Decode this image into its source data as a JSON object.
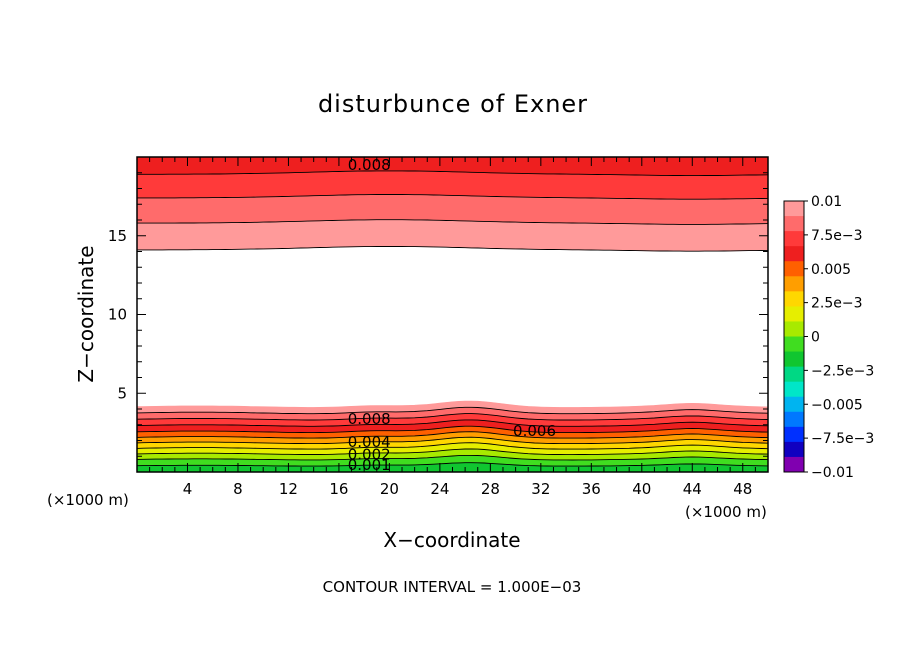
{
  "chart_data": {
    "type": "contour",
    "title": "disturbunce of Exner",
    "xlabel": "X−coordinate",
    "ylabel": "Z−coordinate",
    "x_unit": "(×1000 m)",
    "y_unit": "(×1000 m)",
    "xlim": [
      0,
      50
    ],
    "ylim": [
      0,
      20
    ],
    "x_ticks": [
      4,
      8,
      12,
      16,
      20,
      24,
      28,
      32,
      36,
      40,
      44,
      48
    ],
    "y_ticks": [
      5,
      10,
      15
    ],
    "footer": "CONTOUR INTERVAL = 1.000E−03",
    "contour_labels": [
      {
        "text": "0.008",
        "x": 18.4,
        "z": 19.5
      },
      {
        "text": "0.008",
        "x": 18.4,
        "z": 3.35
      },
      {
        "text": "0.006",
        "x": 31.5,
        "z": 2.6
      },
      {
        "text": "0.004",
        "x": 18.4,
        "z": 1.9
      },
      {
        "text": "0.002",
        "x": 18.4,
        "z": 1.1
      },
      {
        "text": "0.001",
        "x": 18.4,
        "z": 0.45
      }
    ],
    "colorbar": {
      "tick_labels": [
        "0.01",
        "7.5e−3",
        "0.005",
        "2.5e−3",
        "0",
        "−2.5e−3",
        "−0.005",
        "−7.5e−3",
        "−0.01"
      ],
      "colors": [
        "#ff9a9a",
        "#ff6b6b",
        "#ff3a3a",
        "#ee1f1f",
        "#ff6000",
        "#ff9e00",
        "#ffd700",
        "#e6ee00",
        "#a8ea00",
        "#40dd20",
        "#10c630",
        "#00d884",
        "#00e6c8",
        "#00b4f0",
        "#0078ff",
        "#0030ff",
        "#1000c0",
        "#8000b0"
      ]
    },
    "bands": [
      {
        "color": "#ee1f1f",
        "bottom": 18.9,
        "top": 20
      },
      {
        "color": "#ff3a3a",
        "bottom": 17.4,
        "top": 18.9
      },
      {
        "color": "#ff6b6b",
        "bottom": 15.8,
        "top": 17.4
      },
      {
        "color": "#ff9a9a",
        "bottom": 14.1,
        "top": 15.8
      },
      {
        "color": "#ff9a9a",
        "bottom": 3.75,
        "top": 4.15
      },
      {
        "color": "#ff6b6b",
        "bottom": 3.35,
        "top": 3.75
      },
      {
        "color": "#ff3a3a",
        "bottom": 2.95,
        "top": 3.35
      },
      {
        "color": "#ee1f1f",
        "bottom": 2.55,
        "top": 2.95
      },
      {
        "color": "#ff6000",
        "bottom": 2.2,
        "top": 2.55
      },
      {
        "color": "#ff9e00",
        "bottom": 1.85,
        "top": 2.2
      },
      {
        "color": "#ffd700",
        "bottom": 1.5,
        "top": 1.85
      },
      {
        "color": "#e6ee00",
        "bottom": 1.15,
        "top": 1.5
      },
      {
        "color": "#a8ea00",
        "bottom": 0.8,
        "top": 1.15
      },
      {
        "color": "#40dd20",
        "bottom": 0.4,
        "top": 0.8
      },
      {
        "color": "#10c630",
        "bottom": 0.0,
        "top": 0.4
      }
    ]
  }
}
